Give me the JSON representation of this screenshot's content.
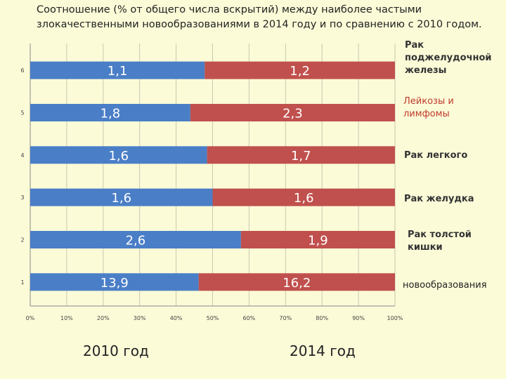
{
  "title": "Соотношение (% от общего числа вскрытий) между наиболее частыми злокачественными новообразованиями  в 2014 году и по сравнению с 2010 годом.",
  "colors": {
    "s2010": "#4a7ec7",
    "s2014": "#c0504d",
    "background": "#fbfbd8"
  },
  "chart_data": {
    "type": "bar",
    "orientation": "horizontal",
    "stacked": "100%",
    "categories": [
      "1",
      "2",
      "3",
      "4",
      "5",
      "6"
    ],
    "category_labels": [
      "новообразования",
      "Рак  толстой кишки",
      "Рак желудка",
      "Рак легкого",
      "Лейкозы и лимфомы",
      "Рак поджелудочной железы"
    ],
    "series": [
      {
        "name": "2010 год",
        "values": [
          13.9,
          2.6,
          1.6,
          1.6,
          1.8,
          1.1
        ],
        "labels": [
          "13,9",
          "2,6",
          "1,6",
          "1,6",
          "1,8",
          "1,1"
        ]
      },
      {
        "name": "2014 год",
        "values": [
          16.2,
          1.9,
          1.6,
          1.7,
          2.3,
          1.2
        ],
        "labels": [
          "16,2",
          "1,9",
          "1,6",
          "1,7",
          "2,3",
          "1,2"
        ]
      }
    ],
    "xticks": [
      "0%",
      "10%",
      "20%",
      "30%",
      "40%",
      "50%",
      "60%",
      "70%",
      "80%",
      "90%",
      "100%"
    ],
    "xlim": [
      0,
      100
    ],
    "grid": true,
    "legend": "bottom"
  }
}
